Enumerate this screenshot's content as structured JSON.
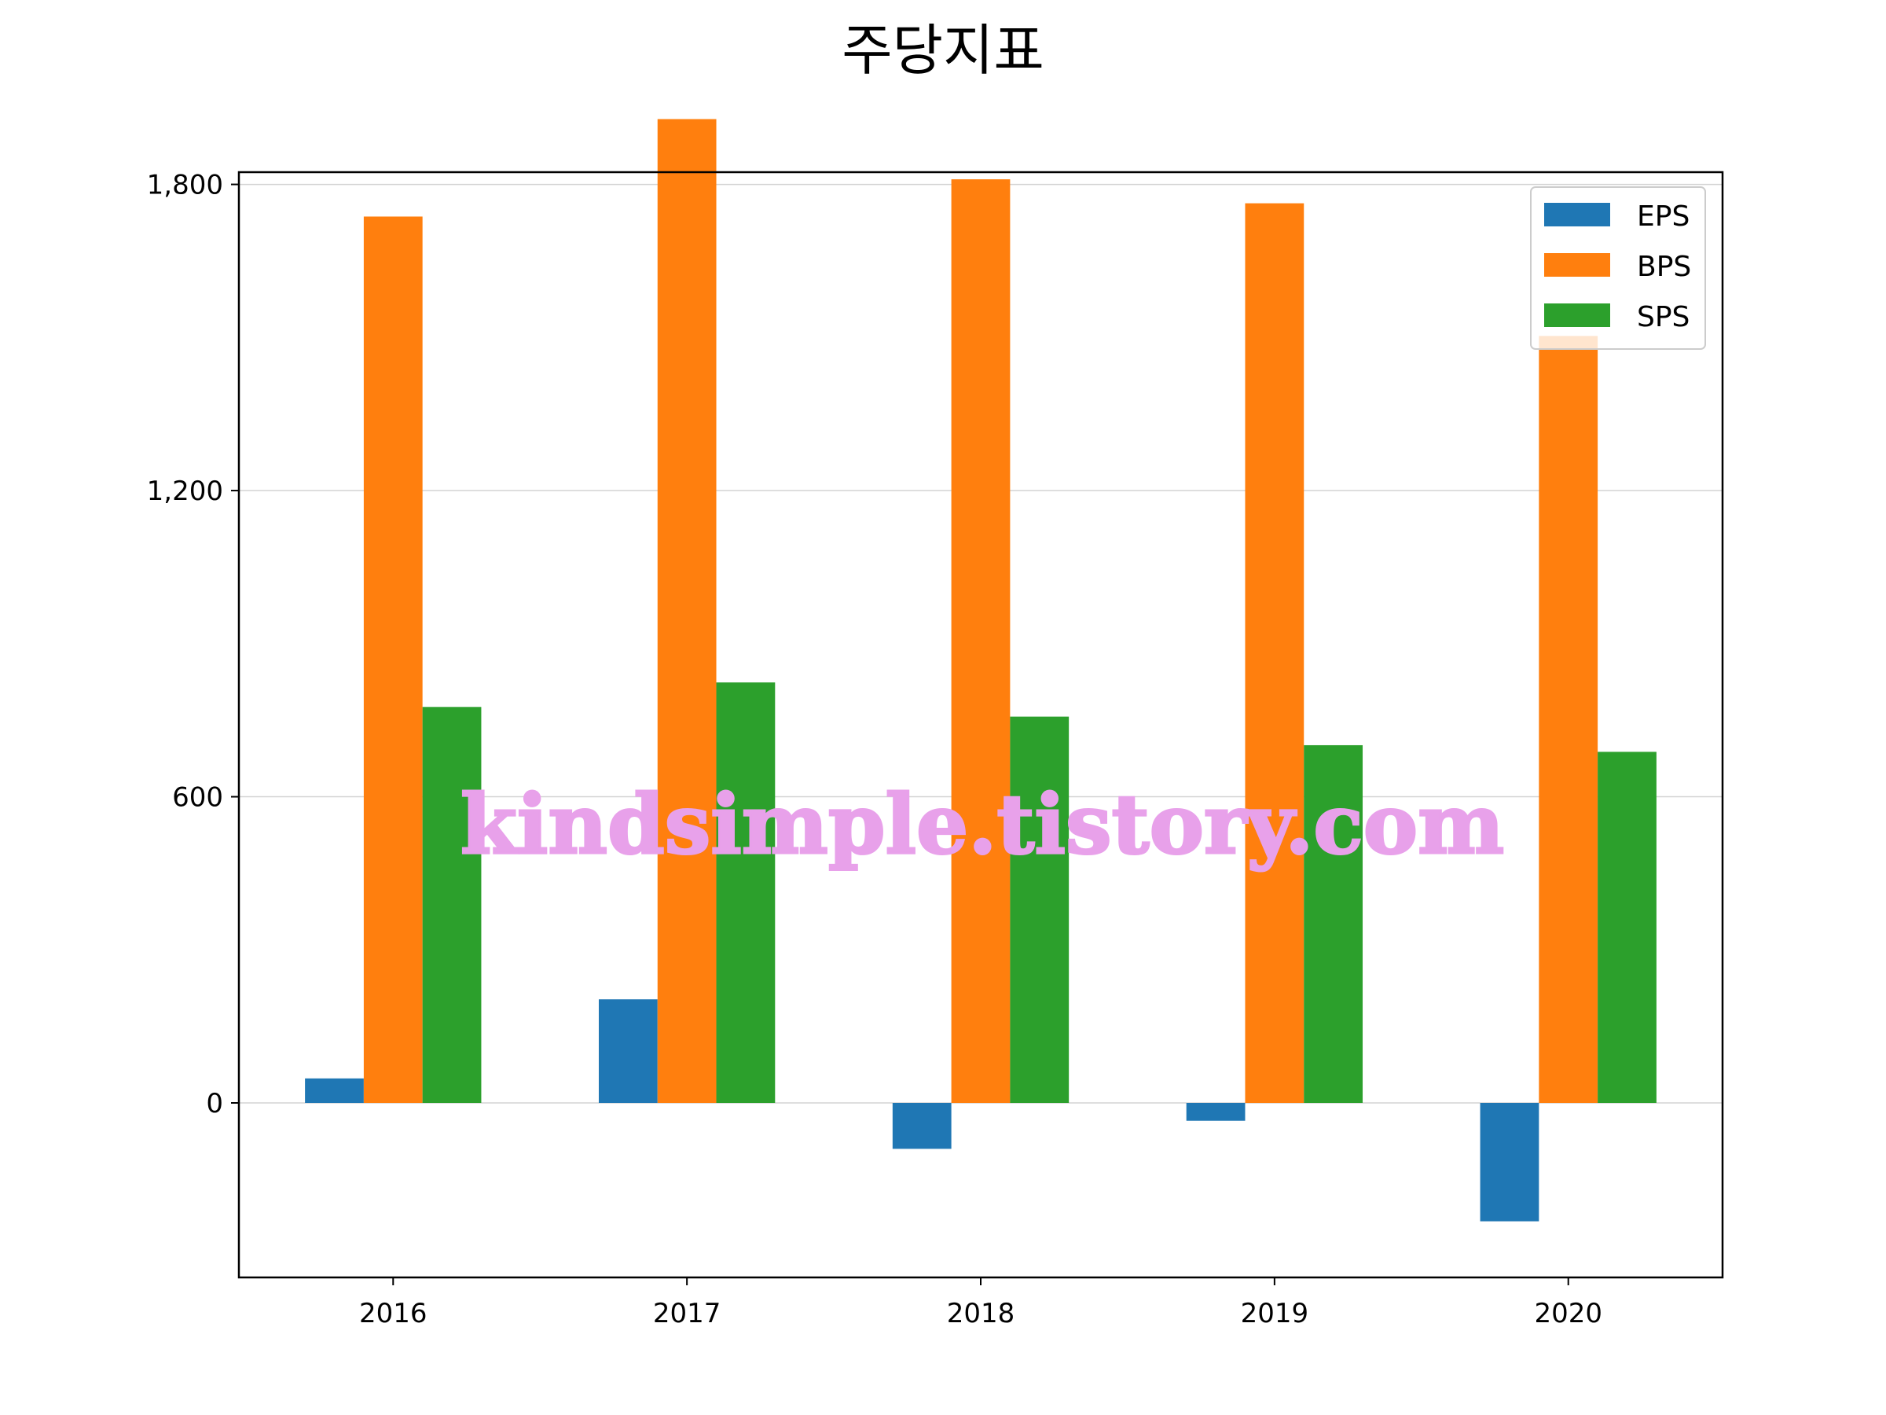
{
  "chart_data": {
    "type": "bar",
    "title": "주당지표",
    "xlabel": "",
    "ylabel": "",
    "categories": [
      "2016",
      "2017",
      "2018",
      "2019",
      "2020"
    ],
    "series": [
      {
        "name": "EPS",
        "color": "#1f77b4",
        "values": [
          48,
          203,
          -90,
          -35,
          -232
        ]
      },
      {
        "name": "BPS",
        "color": "#ff7f0e",
        "values": [
          1737,
          1928,
          1810,
          1763,
          1503
        ]
      },
      {
        "name": "SPS",
        "color": "#2ca02c",
        "values": [
          776,
          824,
          757,
          701,
          688
        ]
      }
    ],
    "ylim": [
      -342,
      1824
    ],
    "yticks": [
      0,
      600,
      1200,
      1800
    ],
    "ytick_labels": [
      "0",
      "600",
      "1,200",
      "1,800"
    ],
    "grid": "y",
    "legend": "top-right"
  },
  "watermark": "kindsimple.tistory.com"
}
